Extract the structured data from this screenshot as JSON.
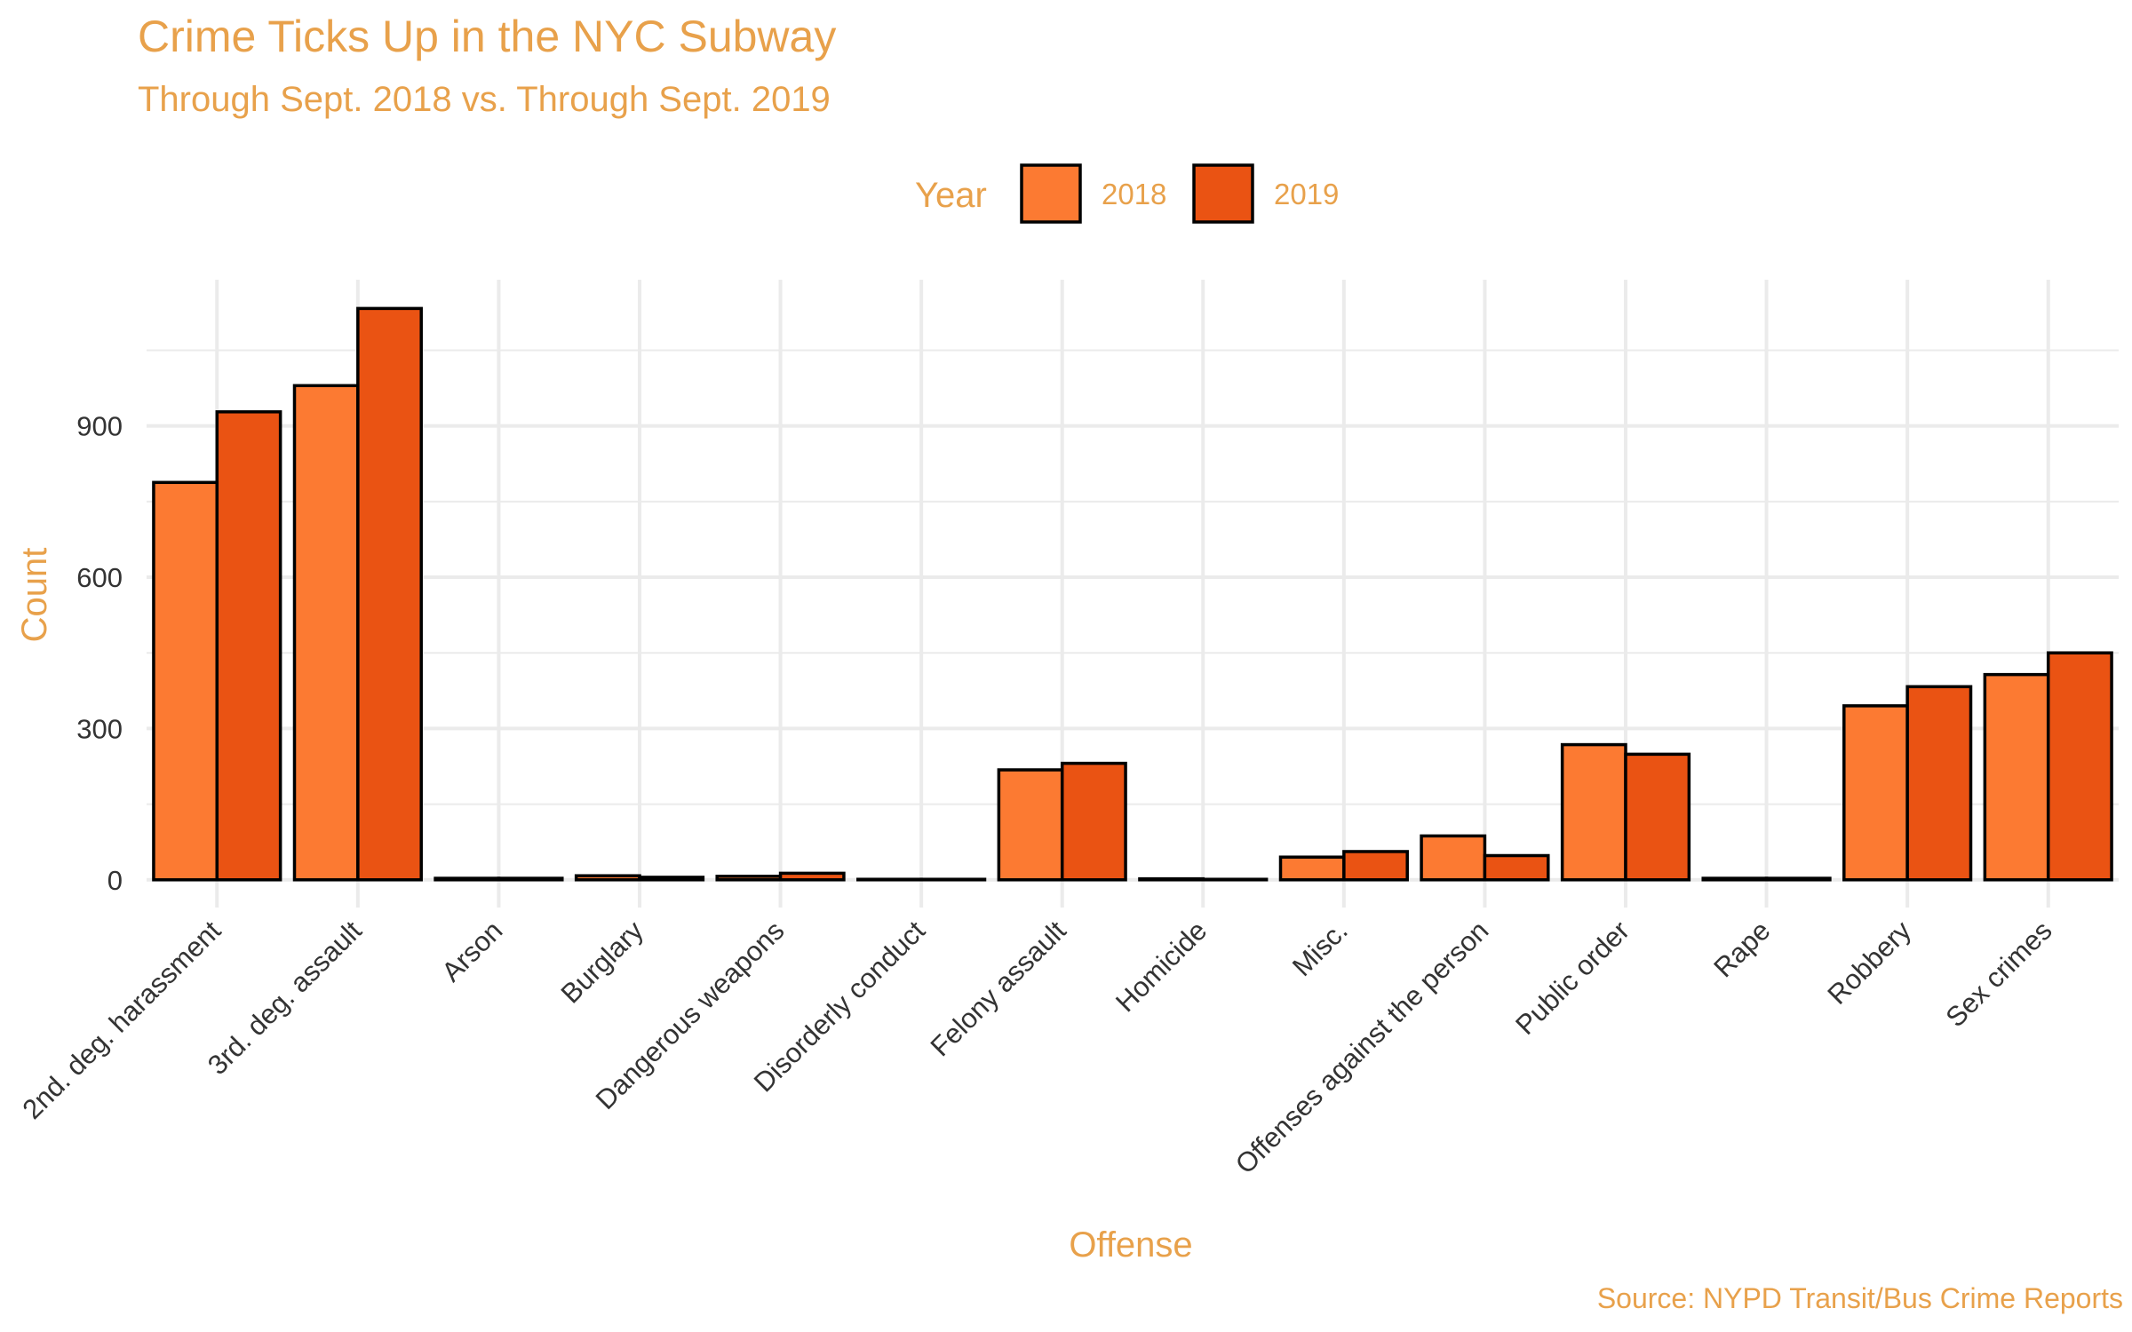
{
  "chart_data": {
    "type": "bar",
    "title": "Crime Ticks Up in the NYC Subway",
    "subtitle": "Through Sept. 2018 vs. Through Sept. 2019",
    "xlabel": "Offense",
    "ylabel": "Count",
    "caption": "Source: NYPD Transit/Bus Crime Reports",
    "legend": {
      "title": "Year",
      "position": "top"
    },
    "categories": [
      "2nd. deg. harassment",
      "3rd. deg. assault",
      "Arson",
      "Burglary",
      "Dangerous weapons",
      "Disorderly conduct",
      "Felony assault",
      "Homicide",
      "Misc.",
      "Offenses against the person",
      "Public order",
      "Rape",
      "Robbery",
      "Sex crimes"
    ],
    "series": [
      {
        "name": "2018",
        "color": "#FC7A32",
        "values": [
          788,
          980,
          3,
          8,
          7,
          1,
          218,
          2,
          45,
          87,
          268,
          3,
          345,
          407
        ]
      },
      {
        "name": "2019",
        "color": "#EA5313",
        "values": [
          928,
          1133,
          3,
          5,
          13,
          1,
          231,
          1,
          56,
          48,
          249,
          3,
          383,
          450
        ]
      }
    ],
    "ylim": [
      -55,
      1190
    ],
    "yticks": [
      0,
      300,
      600,
      900
    ],
    "grid": true,
    "colors": {
      "text_accent": "#E8A14B",
      "tick_text": "#333333",
      "grid": "#EBEBEB",
      "bar_outline": "#000000"
    }
  }
}
